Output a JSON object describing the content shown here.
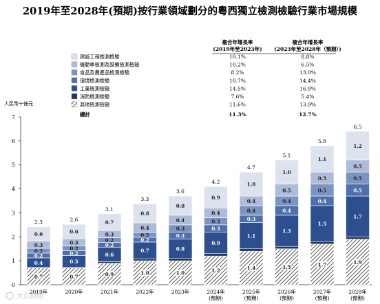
{
  "chart_data": {
    "type": "bar",
    "stacked": true,
    "title": "2019年至2028年(預期)按行業領域劃分的粵西獨立檢測檢驗行業市場規模",
    "unit_label": "人民幣十億元",
    "categories": [
      "2019年",
      "2020年",
      "2021年",
      "2022年",
      "2023年",
      "2024年\n(預期)",
      "2025年\n(預期)",
      "2026年\n(預期)",
      "2027年\n(預期)",
      "2028年\n(預期)"
    ],
    "totals": [
      "2.3",
      "2.6",
      "3.1",
      "3.3",
      "3.6",
      "4.2",
      "4.7",
      "5.1",
      "5.8",
      "6.5"
    ],
    "ylim": [
      0,
      7
    ],
    "yticks": [
      "0",
      "1",
      "2",
      "3",
      "4",
      "5",
      "6",
      "7"
    ],
    "grid": false,
    "cagr_headers": [
      "複合年增長率\n(2019年至2023年)",
      "複合年增長率\n(2023年至2028年（預期）)"
    ],
    "total_row": {
      "label": "總計",
      "cagr1": "11.3%",
      "cagr2": "12.7%"
    },
    "series": [
      {
        "name": "其他檢測檢驗",
        "color": "#ffffff",
        "hatch": true,
        "cagr1": "11.6%",
        "cagr2": "13.9%",
        "values": [
          0.7,
          0.7,
          0.9,
          1.0,
          1.0,
          1.2,
          1.4,
          1.5,
          1.7,
          1.9
        ],
        "labels": [
          "0.7",
          "0.7",
          "0.9",
          "1.0",
          "1.0",
          "1.2",
          "1.4",
          "1.5",
          "1.7",
          "1.9"
        ]
      },
      {
        "name": "消防檢測檢驗",
        "color": "#24355a",
        "cagr1": "7.6%",
        "cagr2": "5.4%",
        "values": [
          0.02,
          0.02,
          0.06,
          0.08,
          0.1,
          0.1,
          0.1,
          0.1,
          0.1,
          0.1
        ],
        "labels": [
          "0.0",
          "0.0",
          "0.1",
          "0.1",
          "0.1",
          "0.1",
          "0.1",
          "0.1",
          "0.1",
          "0.1"
        ]
      },
      {
        "name": "工業檢測檢驗",
        "color": "#2e4f8e",
        "cagr1": "14.5%",
        "cagr2": "16.9%",
        "values": [
          0.4,
          0.5,
          0.6,
          0.7,
          0.8,
          0.9,
          1.1,
          1.3,
          1.5,
          1.7
        ],
        "labels": [
          "0.4",
          "0.5",
          "0.6",
          "0.7",
          "0.8",
          "0.9",
          "1.1",
          "1.3",
          "1.5",
          "1.7"
        ]
      },
      {
        "name": "環境檢測檢驗",
        "color": "#4f6fad",
        "cagr1": "10.7%",
        "cagr2": "14.4%",
        "values": [
          0.2,
          0.2,
          0.2,
          0.2,
          0.3,
          0.3,
          0.3,
          0.4,
          0.4,
          0.5
        ],
        "labels": [
          "0.2",
          "0.2",
          "0.2",
          "0.2",
          "0.3",
          "0.3",
          "0.3",
          "0.4",
          "0.4",
          "0.5"
        ]
      },
      {
        "name": "食品及農產品檢測檢驗",
        "color": "#7d94c3",
        "cagr1": "8.2%",
        "cagr2": "13.0%",
        "values": [
          0.2,
          0.2,
          0.2,
          0.2,
          0.3,
          0.3,
          0.4,
          0.4,
          0.5,
          0.5
        ],
        "labels": [
          "0.2",
          "0.2",
          "0.2",
          "0.2",
          "0.3",
          "0.3",
          "0.4",
          "0.4",
          "0.5",
          "0.5"
        ]
      },
      {
        "name": "機動車檢測及設備檢測檢驗",
        "color": "#aebcd9",
        "cagr1": "10.2%",
        "cagr2": "6.5%",
        "values": [
          0.3,
          0.3,
          0.3,
          0.4,
          0.4,
          0.4,
          0.4,
          0.5,
          0.5,
          0.5
        ],
        "labels": [
          "0.3",
          "0.3",
          "0.3",
          "0.4",
          "0.4",
          "0.4",
          "0.4",
          "0.5",
          "0.5",
          "0.5"
        ]
      },
      {
        "name": "建設工程檢測檢驗",
        "color": "#dde3ee",
        "cagr1": "10.1%",
        "cagr2": "8.8%",
        "values": [
          0.6,
          0.6,
          0.7,
          0.8,
          0.8,
          0.9,
          1.0,
          1.0,
          1.1,
          1.2
        ],
        "labels": [
          "0.6",
          "0.6",
          "0.7",
          "0.8",
          "0.8",
          "0.9",
          "1.0",
          "1.0",
          "1.1",
          "1.2"
        ]
      }
    ]
  },
  "watermark": "大白财经"
}
